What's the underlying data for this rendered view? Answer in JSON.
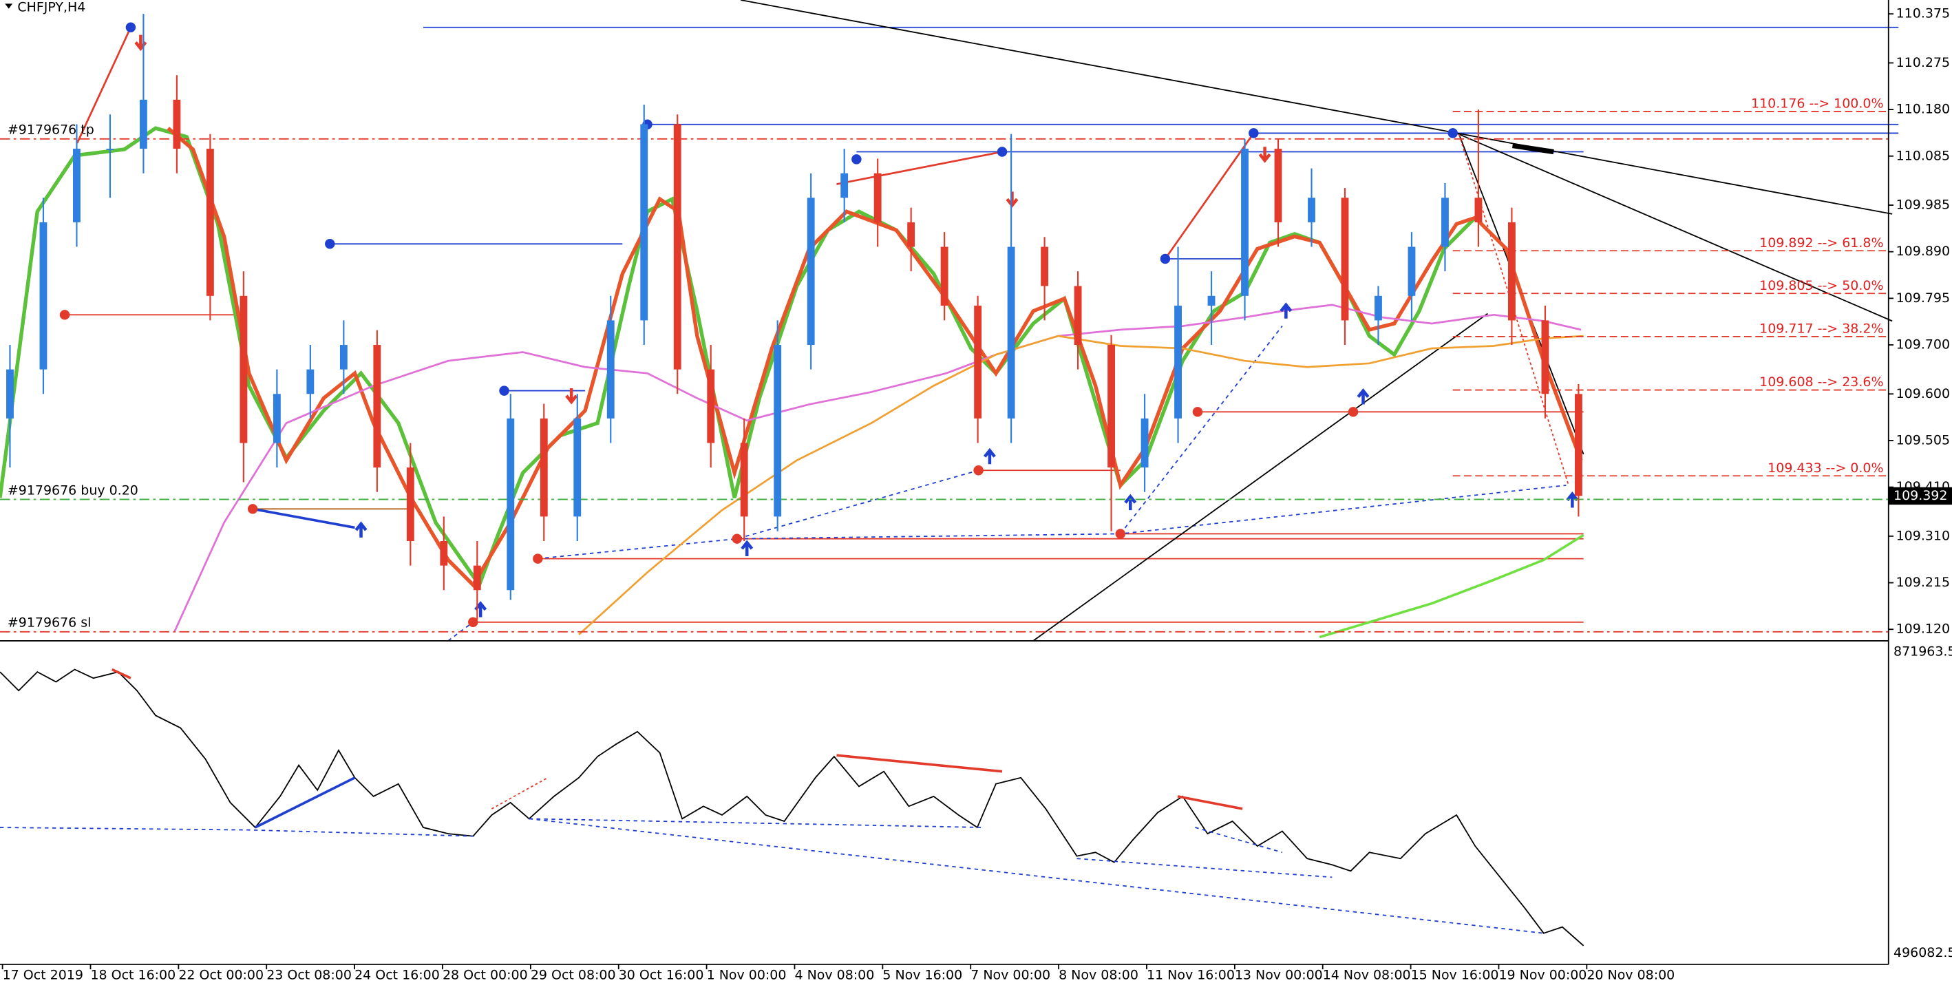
{
  "header": {
    "symbol": "CHFJPY,H4"
  },
  "chart_data": {
    "type": "candlestick",
    "up_color": "#2f7fe0",
    "down_color": "#e33b2b",
    "open": [
      109.55,
      109.65,
      109.95,
      110.1,
      110.1,
      110.2,
      110.1,
      109.8,
      109.5,
      109.6,
      109.65,
      109.7,
      109.45,
      109.3,
      109.25,
      109.2,
      109.55,
      109.35,
      109.55,
      109.75,
      110.15,
      109.65,
      109.5,
      109.35,
      109.7,
      110.0,
      110.05,
      109.95,
      109.9,
      109.78,
      109.55,
      109.9,
      109.82,
      109.7,
      109.45,
      109.55,
      109.78,
      109.8,
      110.1,
      109.95,
      110.0,
      109.75,
      109.8,
      109.9,
      110.0,
      109.95,
      109.75,
      109.6
    ],
    "high": [
      109.7,
      110.0,
      110.15,
      110.17,
      110.375,
      110.25,
      110.13,
      109.85,
      109.65,
      109.7,
      109.75,
      109.73,
      109.5,
      109.35,
      109.3,
      109.6,
      109.58,
      109.6,
      109.8,
      110.19,
      110.17,
      109.7,
      109.55,
      109.75,
      110.05,
      110.1,
      110.08,
      109.98,
      109.93,
      109.8,
      110.13,
      109.92,
      109.85,
      109.72,
      109.6,
      109.9,
      109.85,
      110.12,
      110.12,
      110.06,
      110.02,
      109.82,
      109.93,
      110.03,
      110.18,
      109.98,
      109.78,
      109.62
    ],
    "low": [
      109.45,
      109.6,
      109.9,
      110.0,
      110.05,
      110.05,
      109.75,
      109.42,
      109.45,
      109.55,
      109.6,
      109.4,
      109.25,
      109.2,
      109.14,
      109.18,
      109.3,
      109.3,
      109.5,
      109.7,
      109.6,
      109.45,
      109.3,
      109.32,
      109.65,
      109.95,
      109.9,
      109.85,
      109.75,
      109.5,
      109.5,
      109.75,
      109.65,
      109.32,
      109.4,
      109.5,
      109.7,
      109.75,
      109.9,
      109.9,
      109.7,
      109.7,
      109.75,
      109.85,
      109.9,
      109.7,
      109.55,
      109.35
    ],
    "close": [
      109.65,
      109.95,
      110.1,
      110.1,
      110.2,
      110.1,
      109.8,
      109.5,
      109.6,
      109.65,
      109.7,
      109.45,
      109.3,
      109.25,
      109.2,
      109.55,
      109.35,
      109.55,
      109.75,
      110.15,
      109.65,
      109.5,
      109.35,
      109.7,
      110.0,
      110.05,
      109.95,
      109.9,
      109.78,
      109.55,
      109.9,
      109.82,
      109.7,
      109.45,
      109.55,
      109.78,
      109.8,
      110.1,
      109.95,
      110.0,
      109.75,
      109.8,
      109.9,
      110.0,
      109.95,
      109.75,
      109.6,
      109.392
    ],
    "ylim": [
      109.0966,
      110.4033
    ],
    "yticks": [
      {
        "value": 110.375,
        "label": "110.375"
      },
      {
        "value": 110.275,
        "label": "110.275"
      },
      {
        "value": 110.18,
        "label": "110.180"
      },
      {
        "value": 110.085,
        "label": "110.085"
      },
      {
        "value": 109.985,
        "label": "109.985"
      },
      {
        "value": 109.89,
        "label": "109.890"
      },
      {
        "value": 109.795,
        "label": "109.795"
      },
      {
        "value": 109.7,
        "label": "109.700"
      },
      {
        "value": 109.6,
        "label": "109.600"
      },
      {
        "value": 109.505,
        "label": "109.505"
      },
      {
        "value": 109.41,
        "label": "109.410"
      },
      {
        "value": 109.31,
        "label": "109.310"
      },
      {
        "value": 109.215,
        "label": "109.215"
      },
      {
        "value": 109.12,
        "label": "109.120"
      }
    ],
    "x_labels": [
      "17 Oct 2019",
      "18 Oct 16:00",
      "22 Oct 00:00",
      "23 Oct 08:00",
      "24 Oct 16:00",
      "28 Oct 00:00",
      "29 Oct 08:00",
      "30 Oct 16:00",
      "1 Nov 00:00",
      "4 Nov 08:00",
      "5 Nov 16:00",
      "7 Nov 00:00",
      "8 Nov 08:00",
      "11 Nov 16:00",
      "13 Nov 00:00",
      "14 Nov 08:00",
      "15 Nov 16:00",
      "19 Nov 00:00",
      "20 Nov 08:00"
    ],
    "current_price": {
      "value": 109.392,
      "label": "109.392"
    },
    "fib_levels": [
      {
        "value": 110.176,
        "label": "110.176 --> 100.0%"
      },
      {
        "value": 109.892,
        "label": "109.892 --> 61.8%"
      },
      {
        "value": 109.805,
        "label": "109.805 --> 50.0%"
      },
      {
        "value": 109.717,
        "label": "109.717 --> 38.2%"
      },
      {
        "value": 109.608,
        "label": "109.608 --> 23.6%"
      },
      {
        "value": 109.433,
        "label": "109.433 --> 0.0%"
      }
    ],
    "orders": [
      {
        "value": 110.12,
        "label": "#9179676 tp"
      },
      {
        "value": 109.385,
        "label": "#9179676 buy 0.20"
      },
      {
        "value": 109.115,
        "label": "#9179676 sl"
      }
    ]
  },
  "indicator": {
    "max": 871963.5,
    "min": 496082.5
  }
}
